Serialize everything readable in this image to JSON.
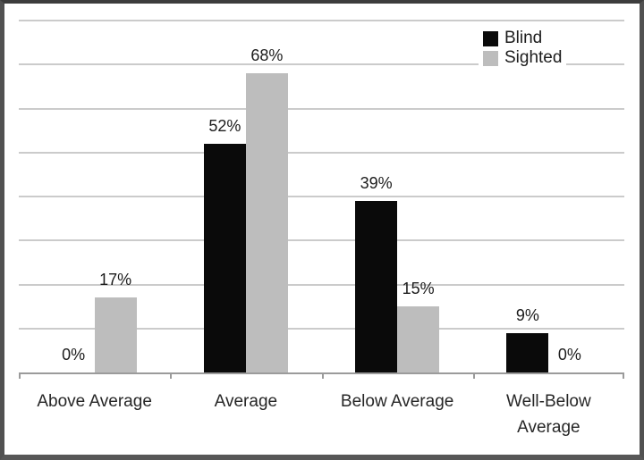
{
  "chart_data": {
    "type": "bar",
    "categories": [
      "Above Average",
      "Average",
      "Below Average",
      "Well-Below Average"
    ],
    "series": [
      {
        "name": "Blind",
        "color": "#0a0a0a",
        "values": [
          0,
          52,
          39,
          9
        ],
        "labels": [
          "0%",
          "52%",
          "39%",
          "9%"
        ]
      },
      {
        "name": "Sighted",
        "color": "#bdbdbd",
        "values": [
          17,
          68,
          15,
          0
        ],
        "labels": [
          "17%",
          "68%",
          "15%",
          "0%"
        ]
      }
    ],
    "title": "",
    "xlabel": "",
    "ylabel": "",
    "ylim": [
      0,
      80
    ],
    "gridline_step": 10,
    "grid": true,
    "legend_position": "top-right",
    "y_tick_labels_visible": false
  },
  "colors": {
    "frame_border": "#515151",
    "gridline": "#cbcbcb",
    "axis": "#9b9b9b",
    "label_text": "#1c1c1c",
    "category_text": "#262626",
    "background": "#ffffff"
  }
}
